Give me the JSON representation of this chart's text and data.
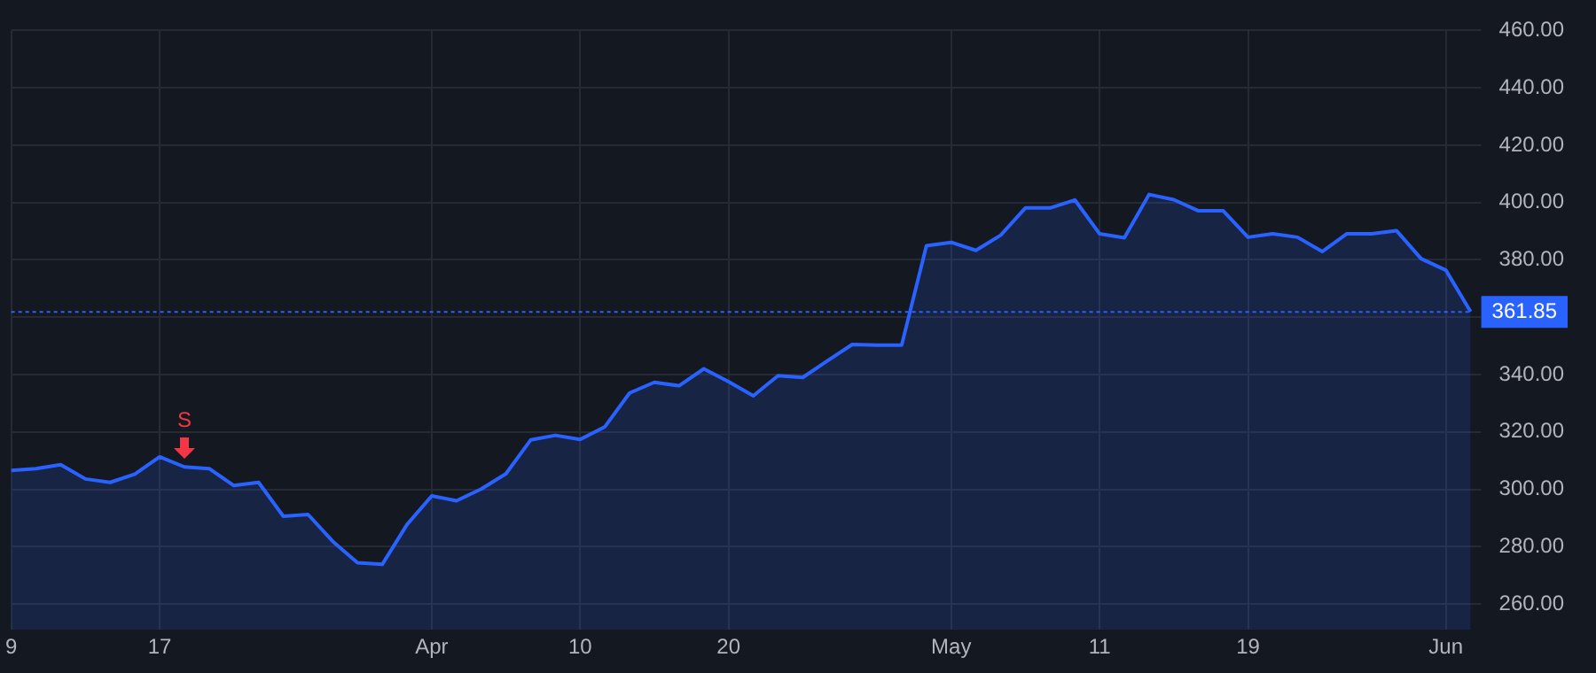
{
  "chart_data": {
    "type": "area",
    "categories": [
      "9",
      null,
      null,
      null,
      null,
      null,
      "17",
      null,
      null,
      null,
      null,
      null,
      null,
      null,
      null,
      null,
      null,
      "Apr",
      null,
      null,
      null,
      null,
      null,
      "10",
      null,
      null,
      null,
      null,
      null,
      "20",
      null,
      null,
      null,
      null,
      null,
      null,
      null,
      null,
      "May",
      null,
      null,
      null,
      null,
      null,
      "11",
      null,
      null,
      null,
      null,
      null,
      "19",
      null,
      null,
      null,
      null,
      null,
      null,
      null,
      "Jun",
      null
    ],
    "series": [
      {
        "color": "#2962ff",
        "values": [
          306.6,
          307.2,
          308.6,
          303.6,
          302.4,
          305.3,
          311.3,
          307.8,
          307.2,
          301.3,
          302.4,
          290.6,
          291.2,
          281.8,
          274.4,
          273.8,
          287.7,
          297.7,
          296,
          300.1,
          305.4,
          317.2,
          318.8,
          317.4,
          321.8,
          333.6,
          337.3,
          336.1,
          342,
          337.5,
          332.6,
          339.6,
          339,
          344.8,
          350.5,
          350.3,
          350.3,
          384.9,
          386.1,
          383.3,
          388.6,
          398.1,
          398.1,
          400.9,
          389.1,
          387.7,
          402.8,
          401,
          397.1,
          397.1,
          387.9,
          389.1,
          387.9,
          382.9,
          389.1,
          389.1,
          390.2,
          380.4,
          376.4,
          361.9
        ]
      }
    ],
    "ylim": [
      251,
      460
    ],
    "yticks": [
      {
        "value": 260,
        "label": "260.00"
      },
      {
        "value": 280,
        "label": "280.00"
      },
      {
        "value": 300,
        "label": "300.00"
      },
      {
        "value": 320,
        "label": "320.00"
      },
      {
        "value": 340,
        "label": "340.00"
      },
      {
        "value": 360,
        "label": null
      },
      {
        "value": 380,
        "label": "380.00"
      },
      {
        "value": 400,
        "label": "400.00"
      },
      {
        "value": 420,
        "label": "420.00"
      },
      {
        "value": 440,
        "label": "440.00"
      },
      {
        "value": 460,
        "label": "460.00"
      }
    ],
    "ref_lines": [
      {
        "axis": "y",
        "value": 361.85,
        "label": "361.85",
        "color": "#2962ff",
        "line_style": "dotted"
      }
    ],
    "annotations": [
      {
        "text": "S",
        "y": 307.8
      }
    ],
    "grid": true,
    "legend": false,
    "marker": "none"
  }
}
